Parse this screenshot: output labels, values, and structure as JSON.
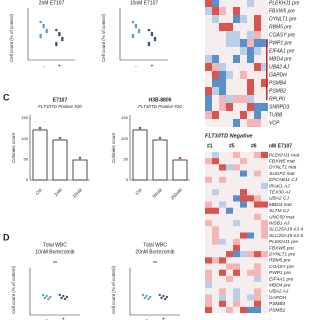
{
  "panel_b": {
    "titles": [
      "2nM E7107",
      "10nM E7107"
    ],
    "y_label": "Cell count (% of control)",
    "x_labels": [
      "-",
      "+"
    ]
  },
  "panel_c": {
    "letter": "C",
    "plots": [
      {
        "title": "E7107",
        "subtitle": "FLT3/ITD Postive #20",
        "x_labels": [
          "Ctrl",
          "2nM",
          "10nM"
        ]
      },
      {
        "title": "H3B-8800",
        "subtitle": "FLT3/ITD Postive #20",
        "x_labels": [
          "Ctrl",
          "50nM",
          "250nM"
        ]
      }
    ],
    "y_label": "Colonies count",
    "yticks": [
      "150",
      "100",
      "50",
      "0"
    ]
  },
  "panel_d": {
    "letter": "D",
    "plots": [
      {
        "title": "Total WBC",
        "subtitle": "10nM Bortezomib",
        "note": "ns"
      },
      {
        "title": "Total WBC",
        "subtitle": "20nM Bortezomib",
        "note": "ns"
      }
    ],
    "y_label": "Cell count (% of control)",
    "x_labels": [
      "-",
      "+"
    ]
  },
  "heatmap": {
    "top_genes": [
      "PLEKHJ1 pre",
      "FBXW5 pre",
      "DYNLT1 pre",
      "RBM5 pre",
      "COASY pre",
      "PWP1 pre",
      "EIF4A1 pre",
      "MBD4 pre",
      "UBA2 AJ",
      "GAPDH",
      "PSMB4",
      "PSMB2",
      "RPLP0",
      "SNRPD3",
      "TUBB",
      "VCP"
    ],
    "group_label": "FLT3/ITD Negative",
    "samples": [
      "#1",
      "#5",
      "#6"
    ],
    "treatment": "nM E7107",
    "bottom_genes": [
      "PLEKHJ1 mat",
      "FBXW5 mat",
      "DYNLT1 mat",
      "SUGP2 mat",
      "EFCAB11 CJ",
      "IRAK1 AJ",
      "TEX30 AJ",
      "UBA2 CJ",
      "MBD4 mat",
      "SLTM CJ",
      "UNC50 mat",
      "WSB1 AJ",
      "SLC25A19 e3-4",
      "SLC25A19 e3-5",
      "PLEKHJ1 pre",
      "FBXW5 pre",
      "DYNLT1 pre",
      "RBM5 pre",
      "COASY pre",
      "PWP1 pre",
      "EIF4A1 pre",
      "MBD4 pre",
      "UBA2 AJ",
      "GAPDH",
      "PSMB4",
      "PSMB2"
    ]
  }
}
